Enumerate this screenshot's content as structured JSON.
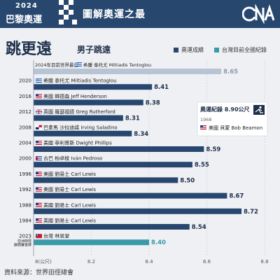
{
  "header": {
    "logo_year": "2024",
    "logo_text": "巴黎奧運",
    "title": "圖解奧運之最",
    "brand": "CNA"
  },
  "main_title": "跳更遠",
  "sub_title": "男子跳遠",
  "legend": {
    "items": [
      {
        "label": "奧運成績",
        "color": "#27476e"
      },
      {
        "label": "台灣目前全國紀錄",
        "color": "#3a9aa8"
      }
    ]
  },
  "record_box": {
    "title": "奧運紀錄 8.90公尺",
    "year": "1968",
    "athlete": "美國  貝蒙 Bob Beamon"
  },
  "source": "資料來源：世界田徑總會",
  "colors": {
    "olympic": "#27476e",
    "taiwan": "#3a9aa8",
    "world_best": "#b8c3d3",
    "background": "#eef0f4"
  },
  "chart_data": {
    "type": "bar",
    "orientation": "horizontal",
    "xlim": [
      8.0,
      8.8
    ],
    "x_ticks": [
      "8(公尺)",
      "8.2",
      "8.4",
      "8.6",
      "8.8"
    ],
    "grid": true,
    "categories": [
      "2024年目前世界最遠",
      "2020",
      "2016",
      "2012",
      "2008",
      "2004",
      "2000",
      "1996",
      "1992",
      "1988",
      "1984",
      "2023\n亞洲田徑錦標賽金牌"
    ],
    "rows": [
      {
        "year": "2024年目前世界最遠",
        "athlete": "希臘  泰托尤 Miltiadis Tentoglou",
        "value": 8.65,
        "kind": "world_best",
        "flag": "greece"
      },
      {
        "year": "2020",
        "athlete": "希臘  泰托尤 Miltiadis Tentoglou",
        "value": 8.41,
        "kind": "olympic",
        "flag": "greece"
      },
      {
        "year": "2016",
        "athlete": "美國  韓德森 Jeff Henderson",
        "value": 8.38,
        "kind": "olympic",
        "flag": "usa"
      },
      {
        "year": "2012",
        "athlete": "英國  羅瑟福德 Greg Rutherford",
        "value": 8.31,
        "kind": "olympic",
        "flag": "uk"
      },
      {
        "year": "2008",
        "athlete": "巴拿馬  沙拉迪諾 Irving Saladino",
        "value": 8.34,
        "kind": "olympic",
        "flag": "panama"
      },
      {
        "year": "2004",
        "athlete": "美國  菲利普斯 Dwight Phillips",
        "value": 8.59,
        "kind": "olympic",
        "flag": "usa"
      },
      {
        "year": "2000",
        "athlete": "古巴  柏卓梭 Iván Pedroso",
        "value": 8.55,
        "kind": "olympic",
        "flag": "cuba"
      },
      {
        "year": "1996",
        "athlete": "美國  劉易士 Carl Lewis",
        "value": 8.5,
        "kind": "olympic",
        "flag": "usa"
      },
      {
        "year": "1992",
        "athlete": "美國  劉易士 Carl Lewis",
        "value": 8.67,
        "kind": "olympic",
        "flag": "usa"
      },
      {
        "year": "1988",
        "athlete": "美國  劉易士 Carl Lewis",
        "value": 8.72,
        "kind": "olympic",
        "flag": "usa"
      },
      {
        "year": "1984",
        "athlete": "美國  劉易士 Carl Lewis",
        "value": 8.54,
        "kind": "olympic",
        "flag": "usa"
      },
      {
        "year": "2023",
        "year_note": "亞洲田徑錦標賽金牌",
        "athlete": "台灣  林昱堂",
        "value": 8.4,
        "kind": "taiwan",
        "flag": "taiwan"
      }
    ]
  }
}
